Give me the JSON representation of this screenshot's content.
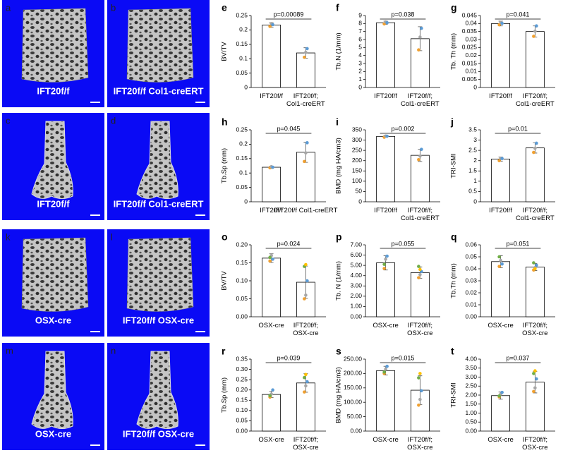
{
  "panels": [
    {
      "letter": "a",
      "caption": "IFT20f/f"
    },
    {
      "letter": "b",
      "caption": "IFT20f/f Col1-creERT"
    },
    {
      "letter": "c",
      "caption": "IFT20f/f"
    },
    {
      "letter": "d",
      "caption": "IFT20f/f Col1-creERT"
    },
    {
      "letter": "k",
      "caption": "OSX-cre"
    },
    {
      "letter": "l",
      "caption": "IFT20f/f OSX-cre"
    },
    {
      "letter": "m",
      "caption": "OSX-cre"
    },
    {
      "letter": "n",
      "caption": "IFT20f/f OSX-cre"
    }
  ],
  "point_colors": [
    "#f0a030",
    "#a6a6a6",
    "#5b9bd5",
    "#70ad47",
    "#ffc000",
    "#264478"
  ],
  "chart_data": [
    {
      "type": "bar",
      "letter": "e",
      "ylabel": "BV/TV",
      "annotation": "p=0.00089",
      "categories": [
        [
          "IFT20f/f"
        ],
        [
          "IFT20f/f;",
          "Col1-creERT"
        ]
      ],
      "values": [
        0.217,
        0.12
      ],
      "errors": [
        0.008,
        0.018
      ],
      "points": [
        [
          0.212,
          0.222,
          0.218
        ],
        [
          0.105,
          0.122,
          0.135
        ]
      ],
      "ylim": [
        0,
        0.25
      ],
      "yticks": [
        0,
        0.05,
        0.1,
        0.15,
        0.2,
        0.25
      ]
    },
    {
      "type": "bar",
      "letter": "f",
      "ylabel": "Tb.N (1/mm)",
      "annotation": "p=0.038",
      "categories": [
        [
          "IFT20f/f"
        ],
        [
          "IFT20f/f;",
          "Col1-creERT"
        ]
      ],
      "values": [
        8.1,
        6.1
      ],
      "errors": [
        0.2,
        1.5
      ],
      "points": [
        [
          7.95,
          8.2,
          8.1
        ],
        [
          4.7,
          6.3,
          7.4
        ]
      ],
      "ylim": [
        0,
        9
      ],
      "yticks": [
        0,
        1,
        2,
        3,
        4,
        5,
        6,
        7,
        8,
        9
      ]
    },
    {
      "type": "bar",
      "letter": "g",
      "ylabel": "Tb. Th (mm)",
      "annotation": "p=0.041",
      "categories": [
        [
          "IFT20f/f"
        ],
        [
          "IFT20f/f;",
          "Col1-creERT"
        ]
      ],
      "values": [
        0.04,
        0.035
      ],
      "errors": [
        0.0015,
        0.0035
      ],
      "points": [
        [
          0.0392,
          0.0408,
          0.0401
        ],
        [
          0.032,
          0.0352,
          0.0385
        ]
      ],
      "ylim": [
        0,
        0.045
      ],
      "yticks": [
        0,
        0.005,
        0.01,
        0.015,
        0.02,
        0.025,
        0.03,
        0.035,
        0.04,
        0.045
      ]
    },
    {
      "type": "bar",
      "letter": "h",
      "ylabel": "Tb.Sp (mm)",
      "annotation": "p=0.045",
      "categories": [
        [
          "IFT20f/f"
        ],
        [
          "IFT20f/f Col1-creERT"
        ]
      ],
      "values": [
        0.12,
        0.172
      ],
      "errors": [
        0.004,
        0.035
      ],
      "points": [
        [
          0.118,
          0.122,
          0.12
        ],
        [
          0.14,
          0.17,
          0.205
        ]
      ],
      "ylim": [
        0,
        0.25
      ],
      "yticks": [
        0,
        0.05,
        0.1,
        0.15,
        0.2,
        0.25
      ]
    },
    {
      "type": "bar",
      "letter": "i",
      "ylabel": "BMD (mg HA/cm3)",
      "annotation": "p=0.002",
      "categories": [
        [
          "IFT20f/f"
        ],
        [
          "IFT20f/f;",
          "Col1-creERT"
        ]
      ],
      "values": [
        318,
        226
      ],
      "errors": [
        5,
        30
      ],
      "points": [
        [
          314,
          320,
          319
        ],
        [
          205,
          222,
          255
        ]
      ],
      "ylim": [
        0,
        350
      ],
      "yticks": [
        0,
        50,
        100,
        150,
        200,
        250,
        300,
        350
      ]
    },
    {
      "type": "bar",
      "letter": "j",
      "ylabel": "TRI-SMI",
      "annotation": "p=0.01",
      "categories": [
        [
          "IFT20f/f"
        ],
        [
          "IFT20f/f;",
          "Col1-creERT"
        ]
      ],
      "values": [
        2.08,
        2.62
      ],
      "errors": [
        0.1,
        0.25
      ],
      "points": [
        [
          2.0,
          2.12,
          2.1
        ],
        [
          2.4,
          2.6,
          2.85
        ]
      ],
      "ylim": [
        0,
        3.5
      ],
      "yticks": [
        0,
        0.5,
        1,
        1.5,
        2,
        2.5,
        3,
        3.5
      ]
    },
    {
      "type": "bar",
      "letter": "o",
      "ylabel": "BV/TV",
      "annotation": "p=0.024",
      "categories": [
        [
          "OSX-cre"
        ],
        [
          "IFT20f/f;",
          "OSX-cre"
        ]
      ],
      "values": [
        0.163,
        0.096
      ],
      "errors": [
        0.012,
        0.045
      ],
      "points": [
        [
          0.155,
          0.17,
          0.16,
          0.165
        ],
        [
          0.05,
          0.06,
          0.1,
          0.14,
          0.145
        ]
      ],
      "ylim": [
        0,
        0.2
      ],
      "yticks": [
        {
          "value": 0,
          "label": "0.00"
        },
        0.05,
        {
          "value": 0.1,
          "label": "0.10"
        },
        0.15,
        {
          "value": 0.2,
          "label": "0.20"
        }
      ]
    },
    {
      "type": "bar",
      "letter": "p",
      "ylabel": "Tb. N (1/mm)",
      "annotation": "p=0.055",
      "categories": [
        [
          "OSX-cre"
        ],
        [
          "IFT20f/f;",
          "OSX-cre"
        ]
      ],
      "values": [
        5.25,
        4.3
      ],
      "errors": [
        0.7,
        0.55
      ],
      "points": [
        [
          4.7,
          5.6,
          5.9,
          5.1
        ],
        [
          3.8,
          4.1,
          4.4,
          4.9,
          4.6
        ]
      ],
      "ylim": [
        0,
        7
      ],
      "yticks": [
        {
          "value": 0,
          "label": "0.00"
        },
        {
          "value": 1,
          "label": "1.00"
        },
        {
          "value": 2,
          "label": "2.00"
        },
        {
          "value": 3,
          "label": "3.00"
        },
        {
          "value": 4,
          "label": "4.00"
        },
        {
          "value": 5,
          "label": "5.00"
        },
        {
          "value": 6,
          "label": "6.00"
        },
        {
          "value": 7,
          "label": "7.00"
        }
      ]
    },
    {
      "type": "bar",
      "letter": "q",
      "ylabel": "Tb.Th (mm)",
      "annotation": "p=0.051",
      "categories": [
        [
          "OSX-cre"
        ],
        [
          "IFT20f/f;",
          "OSX-cre"
        ]
      ],
      "values": [
        0.046,
        0.0415
      ],
      "errors": [
        0.005,
        0.003
      ],
      "points": [
        [
          0.042,
          0.047,
          0.044,
          0.05
        ],
        [
          0.039,
          0.041,
          0.043,
          0.045,
          0.04
        ]
      ],
      "ylim": [
        0,
        0.06
      ],
      "yticks": [
        {
          "value": 0,
          "label": "0.00"
        },
        0.01,
        0.02,
        0.03,
        0.04,
        0.05,
        0.06
      ]
    },
    {
      "type": "bar",
      "letter": "r",
      "ylabel": "Tb.Sp (mm)",
      "annotation": "p=0.039",
      "categories": [
        [
          "OSX-cre"
        ],
        [
          "IFT20f/f;",
          "OSX-cre"
        ]
      ],
      "values": [
        0.178,
        0.234
      ],
      "errors": [
        0.015,
        0.045
      ],
      "points": [
        [
          0.165,
          0.18,
          0.2,
          0.172
        ],
        [
          0.19,
          0.22,
          0.24,
          0.26,
          0.275
        ]
      ],
      "ylim": [
        0,
        0.35
      ],
      "yticks": [
        {
          "value": 0,
          "label": "0.00"
        },
        0.05,
        {
          "value": 0.1,
          "label": "0.10"
        },
        0.15,
        {
          "value": 0.2,
          "label": "0.20"
        },
        0.25,
        {
          "value": 0.3,
          "label": "0.30"
        },
        0.35
      ]
    },
    {
      "type": "bar",
      "letter": "s",
      "ylabel": "BMD (mg HA/cm3)",
      "annotation": "p=0.015",
      "categories": [
        [
          "OSX-cre"
        ],
        [
          "IFT20f/f;",
          "OSX-cre"
        ]
      ],
      "values": [
        210,
        142
      ],
      "errors": [
        15,
        50
      ],
      "points": [
        [
          200,
          215,
          225,
          205
        ],
        [
          90,
          110,
          140,
          185,
          200
        ]
      ],
      "ylim": [
        0,
        250
      ],
      "yticks": [
        {
          "value": 0,
          "label": "0.00"
        },
        {
          "value": 50,
          "label": "50.00"
        },
        {
          "value": 100,
          "label": "100.00"
        },
        {
          "value": 150,
          "label": "150.00"
        },
        {
          "value": 200,
          "label": "200.00"
        },
        {
          "value": 250,
          "label": "250.00"
        }
      ]
    },
    {
      "type": "bar",
      "letter": "t",
      "ylabel": "TRI-SMI",
      "annotation": "p=0.037",
      "categories": [
        [
          "OSX-cre"
        ],
        [
          "IFT20f/f;",
          "OSX-cre"
        ]
      ],
      "values": [
        1.97,
        2.72
      ],
      "errors": [
        0.2,
        0.6
      ],
      "points": [
        [
          1.9,
          2.05,
          2.15,
          1.95
        ],
        [
          2.2,
          2.4,
          2.9,
          3.2,
          3.35
        ]
      ],
      "ylim": [
        0,
        4
      ],
      "yticks": [
        {
          "value": 0,
          "label": "0.00"
        },
        {
          "value": 0.5,
          "label": "0.50"
        },
        {
          "value": 1,
          "label": "1.00"
        },
        {
          "value": 1.5,
          "label": "1.50"
        },
        {
          "value": 2,
          "label": "2.00"
        },
        {
          "value": 2.5,
          "label": "2.50"
        },
        {
          "value": 3,
          "label": "3.00"
        },
        {
          "value": 3.5,
          "label": "3.50"
        },
        {
          "value": 4,
          "label": "4.00"
        }
      ]
    }
  ]
}
